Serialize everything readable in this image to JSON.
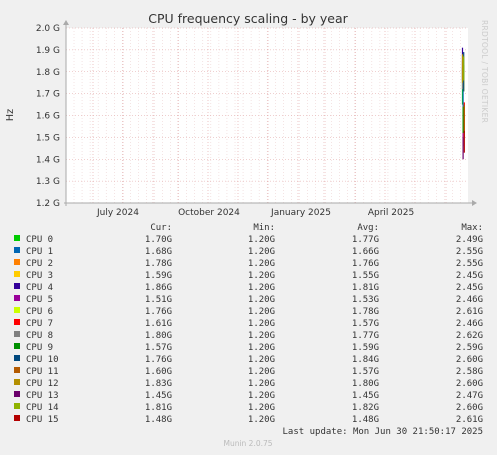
{
  "chart_data": {
    "type": "line",
    "title": "CPU frequency scaling - by year",
    "ylabel": "Hz",
    "side_text": "RRDTOOL / TOBI OETIKER",
    "ylim": [
      1.2,
      2.0
    ],
    "yticks": [
      "1.2 G",
      "1.3 G",
      "1.4 G",
      "1.5 G",
      "1.6 G",
      "1.7 G",
      "1.8 G",
      "1.9 G",
      "2.0 G"
    ],
    "xticks": [
      "July 2024",
      "October 2024",
      "January 2025",
      "April 2025"
    ],
    "headers": {
      "cur": "Cur:",
      "min": "Min:",
      "avg": "Avg:",
      "max": "Max:"
    },
    "series": [
      {
        "name": "CPU 0",
        "color": "#00cc00",
        "cur": "1.70G",
        "min": "1.20G",
        "avg": "1.77G",
        "max": "2.49G"
      },
      {
        "name": "CPU 1",
        "color": "#0066b3",
        "cur": "1.68G",
        "min": "1.20G",
        "avg": "1.66G",
        "max": "2.55G"
      },
      {
        "name": "CPU 2",
        "color": "#ff8000",
        "cur": "1.78G",
        "min": "1.20G",
        "avg": "1.76G",
        "max": "2.55G"
      },
      {
        "name": "CPU 3",
        "color": "#ffcc00",
        "cur": "1.59G",
        "min": "1.20G",
        "avg": "1.55G",
        "max": "2.45G"
      },
      {
        "name": "CPU 4",
        "color": "#330099",
        "cur": "1.86G",
        "min": "1.20G",
        "avg": "1.81G",
        "max": "2.45G"
      },
      {
        "name": "CPU 5",
        "color": "#990099",
        "cur": "1.51G",
        "min": "1.20G",
        "avg": "1.53G",
        "max": "2.46G"
      },
      {
        "name": "CPU 6",
        "color": "#ccff00",
        "cur": "1.76G",
        "min": "1.20G",
        "avg": "1.78G",
        "max": "2.61G"
      },
      {
        "name": "CPU 7",
        "color": "#ff0000",
        "cur": "1.61G",
        "min": "1.20G",
        "avg": "1.57G",
        "max": "2.46G"
      },
      {
        "name": "CPU 8",
        "color": "#808080",
        "cur": "1.80G",
        "min": "1.20G",
        "avg": "1.77G",
        "max": "2.62G"
      },
      {
        "name": "CPU 9",
        "color": "#008f00",
        "cur": "1.57G",
        "min": "1.20G",
        "avg": "1.59G",
        "max": "2.59G"
      },
      {
        "name": "CPU 10",
        "color": "#00487d",
        "cur": "1.76G",
        "min": "1.20G",
        "avg": "1.84G",
        "max": "2.60G"
      },
      {
        "name": "CPU 11",
        "color": "#b35a00",
        "cur": "1.60G",
        "min": "1.20G",
        "avg": "1.57G",
        "max": "2.58G"
      },
      {
        "name": "CPU 12",
        "color": "#b38f00",
        "cur": "1.83G",
        "min": "1.20G",
        "avg": "1.80G",
        "max": "2.60G"
      },
      {
        "name": "CPU 13",
        "color": "#6b006b",
        "cur": "1.45G",
        "min": "1.20G",
        "avg": "1.45G",
        "max": "2.47G"
      },
      {
        "name": "CPU 14",
        "color": "#8fb300",
        "cur": "1.81G",
        "min": "1.20G",
        "avg": "1.82G",
        "max": "2.60G"
      },
      {
        "name": "CPU 15",
        "color": "#b30000",
        "cur": "1.48G",
        "min": "1.20G",
        "avg": "1.48G",
        "max": "2.61G"
      }
    ],
    "last_update": "Last update: Mon Jun 30 21:50:17 2025",
    "footer": "Munin 2.0.75"
  }
}
